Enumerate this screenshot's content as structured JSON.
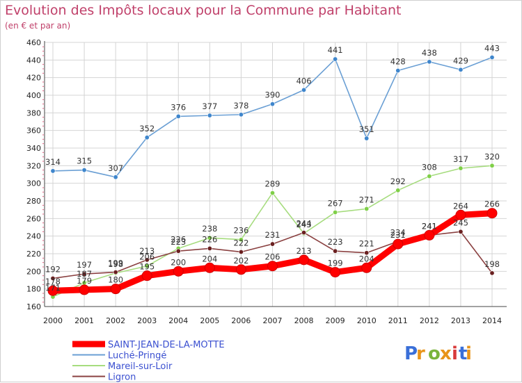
{
  "header": {
    "title": "Evolution des Impôts locaux pour la Commune par Habitant",
    "subtitle": "(en € et par an)"
  },
  "logo": {
    "text": "Proxiti"
  },
  "chart_data": {
    "type": "line",
    "x": [
      2000,
      2001,
      2002,
      2003,
      2004,
      2005,
      2006,
      2007,
      2008,
      2009,
      2010,
      2011,
      2012,
      2013,
      2014
    ],
    "ylim": [
      160,
      460
    ],
    "yticks": [
      160,
      180,
      200,
      220,
      240,
      260,
      280,
      300,
      320,
      340,
      360,
      380,
      400,
      420,
      440,
      460
    ],
    "grid": true,
    "legend_position": "bottom-left",
    "series": [
      {
        "name": "Luché-Pringé",
        "color": "#6a9fd4",
        "marker": "#3f86cc",
        "values": [
          314,
          315,
          307,
          352,
          376,
          377,
          378,
          390,
          406,
          441,
          351,
          428,
          438,
          429,
          443
        ]
      },
      {
        "name": "Mareil-sur-Loir",
        "color": "#a6dc7e",
        "marker": "#7fcf48",
        "values": [
          171,
          187,
          198,
          206,
          226,
          238,
          236,
          289,
          243,
          267,
          271,
          292,
          308,
          317,
          320
        ]
      },
      {
        "name": "Ligron",
        "color": "#8a4040",
        "marker": "#6a2020",
        "values": [
          192,
          197,
          199,
          213,
          223,
          226,
          222,
          231,
          244,
          223,
          221,
          234,
          241,
          245,
          198
        ]
      },
      {
        "name": "SAINT-JEAN-DE-LA-MOTTE",
        "color": "#ff0000",
        "marker": "#ff0000",
        "values": [
          178,
          179,
          180,
          195,
          200,
          204,
          202,
          206,
          213,
          199,
          204,
          231,
          241,
          264,
          266
        ]
      }
    ]
  }
}
